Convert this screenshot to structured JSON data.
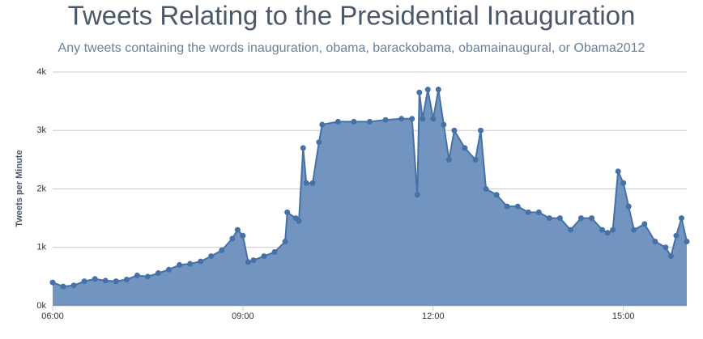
{
  "chart_data": {
    "type": "area",
    "title": "Tweets Relating to the Presidential Inauguration",
    "subtitle": "Any tweets containing the words inauguration, obama, barackobama, obamainaugural, or Obama2012",
    "y_label": "Tweets per Minute",
    "x": [
      "06:00",
      "06:10",
      "06:20",
      "06:30",
      "06:40",
      "06:50",
      "07:00",
      "07:10",
      "07:20",
      "07:30",
      "07:40",
      "07:50",
      "08:00",
      "08:10",
      "08:20",
      "08:30",
      "08:40",
      "08:50",
      "08:55",
      "09:00",
      "09:05",
      "09:10",
      "09:20",
      "09:30",
      "09:40",
      "09:42",
      "09:50",
      "09:53",
      "09:57",
      "10:00",
      "10:06",
      "10:12",
      "10:15",
      "10:30",
      "10:45",
      "11:00",
      "11:15",
      "11:30",
      "11:40",
      "11:45",
      "11:47",
      "11:50",
      "11:55",
      "12:00",
      "12:05",
      "12:10",
      "12:15",
      "12:20",
      "12:30",
      "12:40",
      "12:45",
      "12:50",
      "13:00",
      "13:10",
      "13:20",
      "13:30",
      "13:40",
      "13:50",
      "14:00",
      "14:10",
      "14:20",
      "14:30",
      "14:40",
      "14:45",
      "14:50",
      "14:55",
      "15:00",
      "15:05",
      "15:10",
      "15:20",
      "15:30",
      "15:40",
      "15:45",
      "15:50",
      "15:55",
      "16:00"
    ],
    "series": [
      {
        "name": "Tweets per Minute",
        "color": "#4571a6",
        "fill": "#7195c0",
        "values": [
          400,
          330,
          350,
          420,
          460,
          430,
          420,
          450,
          520,
          500,
          560,
          620,
          700,
          720,
          760,
          850,
          950,
          1150,
          1300,
          1200,
          750,
          780,
          850,
          920,
          1100,
          1600,
          1500,
          1450,
          2700,
          2100,
          2100,
          2800,
          3100,
          3150,
          3150,
          3150,
          3180,
          3200,
          3200,
          1900,
          3650,
          3200,
          3700,
          3200,
          3700,
          3100,
          2500,
          3000,
          2700,
          2500,
          3000,
          2000,
          1900,
          1700,
          1700,
          1600,
          1600,
          1500,
          1500,
          1300,
          1500,
          1500,
          1300,
          1250,
          1300,
          2300,
          2100,
          1700,
          1300,
          1400,
          1100,
          1000,
          850,
          1200,
          1500,
          1100
        ]
      }
    ],
    "xlim": [
      "06:00",
      "16:00"
    ],
    "xticks": [
      "06:00",
      "09:00",
      "12:00",
      "15:00"
    ],
    "ylim": [
      0,
      4000
    ],
    "yticks": [
      {
        "value": 0,
        "label": "0k"
      },
      {
        "value": 1000,
        "label": "1k"
      },
      {
        "value": 2000,
        "label": "2k"
      },
      {
        "value": 3000,
        "label": "3k"
      },
      {
        "value": 4000,
        "label": "4k"
      }
    ],
    "grid": true
  }
}
